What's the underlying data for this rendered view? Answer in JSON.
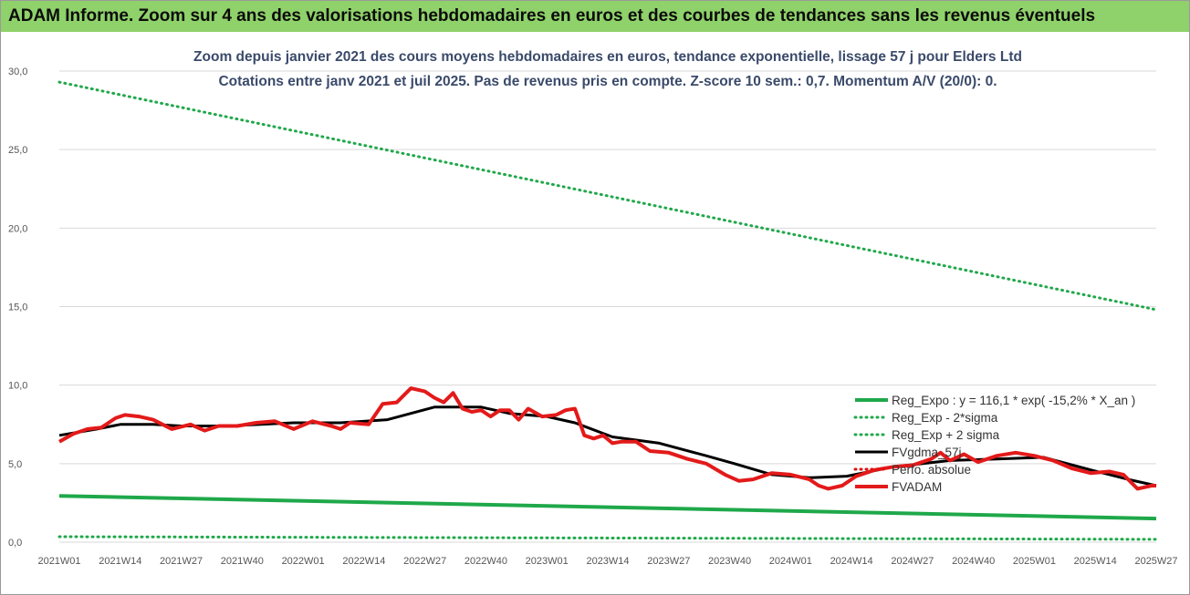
{
  "banner": {
    "title": "ADAM Informe. Zoom sur 4 ans des valorisations hebdomadaires en euros et des courbes de tendances sans les revenus éventuels"
  },
  "chart_data": {
    "type": "line",
    "title_line1": "Zoom depuis janvier 2021 des cours moyens hebdomadaires en euros, tendance exponentielle, lissage 57 j pour Elders Ltd",
    "title_line2": "Cotations entre janv 2021 et juil 2025. Pas de revenus pris en compte. Z-score 10 sem.: 0,7. Momentum A/V (20/0): 0.",
    "ylim": [
      0,
      30
    ],
    "y_ticks": [
      "0,0",
      "5,0",
      "10,0",
      "15,0",
      "20,0",
      "25,0",
      "30,0"
    ],
    "x_ticks": [
      "2021W01",
      "2021W14",
      "2021W27",
      "2021W40",
      "2022W01",
      "2022W14",
      "2022W27",
      "2022W40",
      "2023W01",
      "2023W14",
      "2023W27",
      "2023W40",
      "2024W01",
      "2024W14",
      "2024W27",
      "2024W40",
      "2025W01",
      "2025W14",
      "2025W27"
    ],
    "grid": "horizontal",
    "legend_position": "right",
    "series": [
      {
        "name": "Reg_Expo : y = 116,1 * exp( -15,2% *  X_an )",
        "style": "solid-thick",
        "color": "#1fa84a",
        "x": [
          0,
          234
        ],
        "values": [
          2.95,
          1.5
        ]
      },
      {
        "name": "Reg_Exp - 2*sigma",
        "style": "dotted",
        "color": "#1fa84a",
        "x": [
          0,
          234
        ],
        "values": [
          0.35,
          0.18
        ]
      },
      {
        "name": "Reg_Exp + 2 sigma",
        "style": "dotted",
        "color": "#1fa84a",
        "x": [
          0,
          234
        ],
        "values": [
          29.3,
          14.8
        ]
      },
      {
        "name": "FVgdma_57j",
        "style": "solid",
        "color": "#000000",
        "x": [
          0,
          8,
          13,
          20,
          26,
          36,
          50,
          60,
          70,
          80,
          90,
          96,
          104,
          110,
          118,
          128,
          138,
          144,
          152,
          160,
          168,
          178,
          190,
          200,
          210,
          220,
          228,
          234
        ],
        "values": [
          6.8,
          7.2,
          7.5,
          7.5,
          7.4,
          7.4,
          7.6,
          7.6,
          7.8,
          8.6,
          8.6,
          8.2,
          8.0,
          7.6,
          6.7,
          6.3,
          5.5,
          5.0,
          4.3,
          4.1,
          4.2,
          4.8,
          5.2,
          5.3,
          5.4,
          4.6,
          4.0,
          3.6
        ]
      },
      {
        "name": "Perfo. absolue",
        "style": "dotted",
        "color": "#e01010",
        "x": [],
        "values": []
      },
      {
        "name": "FVADAM",
        "style": "solid-thick",
        "color": "#e31a1a",
        "x": [
          0,
          3,
          6,
          9,
          12,
          14,
          17,
          20,
          24,
          28,
          31,
          34,
          38,
          42,
          46,
          50,
          54,
          58,
          60,
          62,
          66,
          69,
          72,
          75,
          78,
          80,
          82,
          84,
          86,
          88,
          90,
          92,
          94,
          96,
          98,
          100,
          103,
          106,
          108,
          110,
          112,
          114,
          116,
          118,
          120,
          123,
          126,
          130,
          134,
          138,
          142,
          145,
          148,
          152,
          156,
          160,
          162,
          164,
          167,
          170,
          174,
          178,
          182,
          186,
          188,
          190,
          193,
          196,
          200,
          204,
          208,
          212,
          216,
          220,
          224,
          227,
          230,
          233,
          234
        ],
        "values": [
          6.4,
          6.9,
          7.2,
          7.3,
          7.9,
          8.1,
          8.0,
          7.8,
          7.2,
          7.5,
          7.1,
          7.4,
          7.4,
          7.6,
          7.7,
          7.2,
          7.7,
          7.4,
          7.2,
          7.6,
          7.5,
          8.8,
          8.9,
          9.8,
          9.6,
          9.2,
          8.9,
          9.5,
          8.5,
          8.3,
          8.4,
          8.0,
          8.4,
          8.4,
          7.8,
          8.5,
          8.0,
          8.1,
          8.4,
          8.5,
          6.8,
          6.6,
          6.8,
          6.3,
          6.4,
          6.4,
          5.8,
          5.7,
          5.3,
          5.0,
          4.3,
          3.9,
          4.0,
          4.4,
          4.3,
          4.0,
          3.6,
          3.4,
          3.6,
          4.2,
          4.6,
          4.8,
          4.9,
          5.3,
          5.7,
          5.2,
          5.6,
          5.1,
          5.5,
          5.7,
          5.5,
          5.2,
          4.7,
          4.4,
          4.5,
          4.3,
          3.4,
          3.6,
          3.6
        ]
      }
    ]
  }
}
